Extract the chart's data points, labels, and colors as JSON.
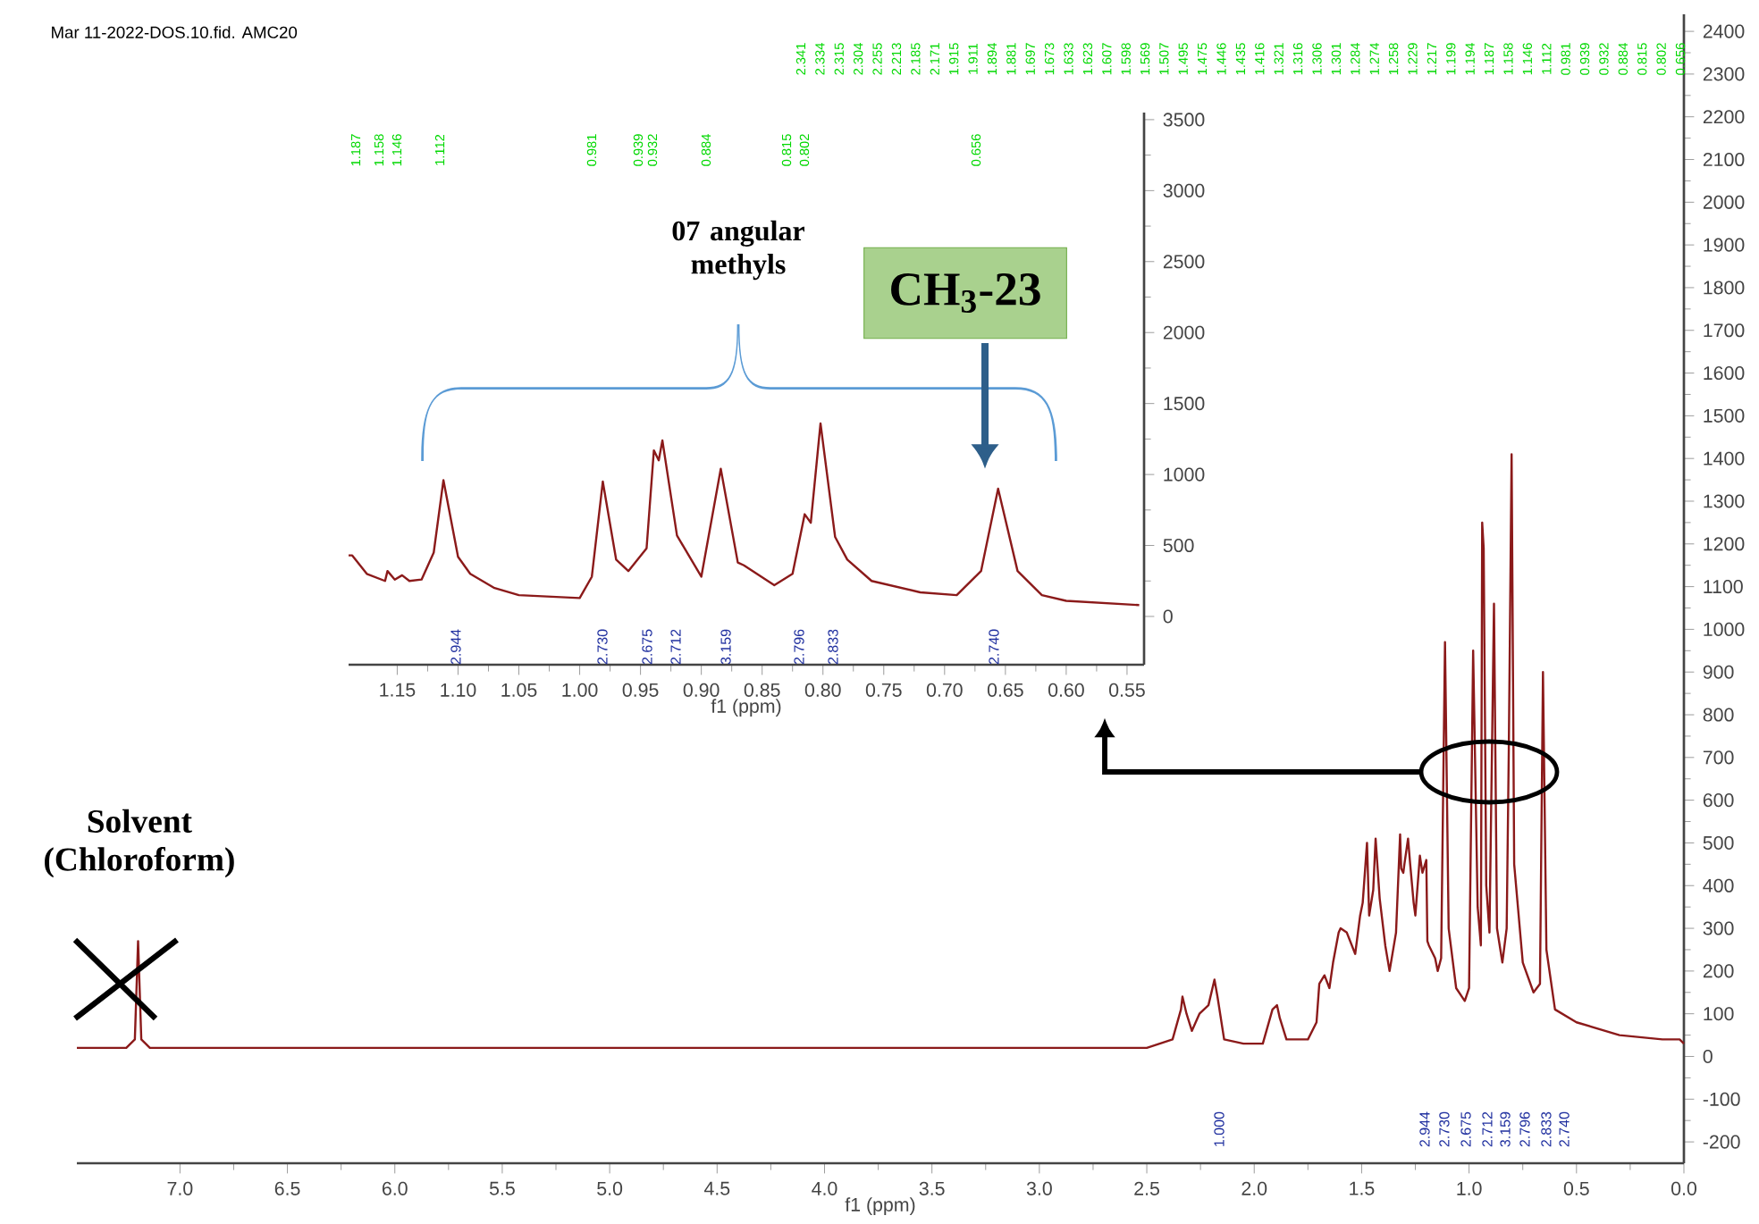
{
  "chart_data": [
    {
      "type": "line",
      "title": "Mar 11-2022-DOS.10.fid. AMC20",
      "xlabel": "f1 (ppm)",
      "x": [
        7.48,
        7.25,
        7.21,
        7.195,
        7.18,
        7.14,
        6.0,
        4.0,
        2.5,
        2.38,
        2.341,
        2.334,
        2.315,
        2.29,
        2.255,
        2.213,
        2.185,
        2.171,
        2.14,
        2.05,
        1.96,
        1.915,
        1.894,
        1.881,
        1.85,
        1.75,
        1.71,
        1.697,
        1.673,
        1.65,
        1.633,
        1.607,
        1.598,
        1.569,
        1.53,
        1.507,
        1.495,
        1.475,
        1.465,
        1.446,
        1.435,
        1.416,
        1.39,
        1.37,
        1.34,
        1.321,
        1.316,
        1.306,
        1.301,
        1.284,
        1.274,
        1.258,
        1.25,
        1.229,
        1.217,
        1.199,
        1.194,
        1.187,
        1.158,
        1.146,
        1.13,
        1.112,
        1.095,
        1.06,
        1.02,
        1.0,
        0.981,
        0.96,
        0.945,
        0.939,
        0.932,
        0.92,
        0.905,
        0.884,
        0.87,
        0.845,
        0.825,
        0.815,
        0.802,
        0.79,
        0.75,
        0.7,
        0.67,
        0.656,
        0.64,
        0.6,
        0.5,
        0.3,
        0.1,
        0.02,
        0.0
      ],
      "series": [
        {
          "color": "#8b1a1a",
          "values": [
            20,
            20,
            40,
            270,
            40,
            20,
            20,
            20,
            20,
            40,
            110,
            140,
            100,
            60,
            100,
            120,
            180,
            140,
            40,
            30,
            30,
            110,
            120,
            90,
            40,
            40,
            80,
            170,
            190,
            160,
            220,
            290,
            300,
            290,
            240,
            330,
            360,
            500,
            330,
            390,
            510,
            370,
            260,
            200,
            290,
            520,
            440,
            430,
            450,
            510,
            450,
            360,
            330,
            470,
            430,
            460,
            270,
            260,
            230,
            200,
            230,
            970,
            300,
            160,
            130,
            160,
            950,
            350,
            260,
            1250,
            1190,
            400,
            290,
            1060,
            300,
            220,
            300,
            720,
            1410,
            450,
            220,
            150,
            170,
            900,
            250,
            110,
            80,
            50,
            40,
            40,
            30
          ]
        }
      ],
      "xlim": [
        7.48,
        0
      ],
      "ylim": [
        -250,
        2440
      ],
      "xticks": [
        {
          "value": 7,
          "label": "7.0"
        },
        6.5,
        {
          "value": 6,
          "label": "6.0"
        },
        5.5,
        {
          "value": 5,
          "label": "5.0"
        },
        4.5,
        {
          "value": 4,
          "label": "4.0"
        },
        3.5,
        {
          "value": 3,
          "label": "3.0"
        },
        2.5,
        {
          "value": 2,
          "label": "2.0"
        },
        1.5,
        {
          "value": 1,
          "label": "1.0"
        },
        0.5,
        {
          "value": 0,
          "label": "0.0"
        }
      ],
      "yticks": [
        -200,
        -100,
        0,
        100,
        200,
        300,
        400,
        500,
        600,
        700,
        800,
        900,
        1000,
        1100,
        1200,
        1300,
        1400,
        1500,
        1600,
        1700,
        1800,
        1900,
        2000,
        2100,
        2200,
        2300,
        2400
      ],
      "annotations": [
        "2.341",
        "2.334",
        "2.315",
        "2.304",
        "2.255",
        "2.213",
        "2.185",
        "2.171",
        "1.915",
        "1.911",
        "1.894",
        "1.881",
        "1.697",
        "1.673",
        "1.633",
        "1.623",
        "1.607",
        "1.598",
        "1.569",
        "1.507",
        "1.495",
        "1.475",
        "1.446",
        "1.435",
        "1.416",
        "1.321",
        "1.316",
        "1.306",
        "1.301",
        "1.284",
        "1.274",
        "1.258",
        "1.229",
        "1.217",
        "1.199",
        "1.194",
        "1.187",
        "1.158",
        "1.146",
        "1.112",
        "0.981",
        "0.939",
        "0.932",
        "0.884",
        "0.815",
        "0.802",
        "0.656",
        "Solvent (Chloroform)",
        "1.000",
        "2.944",
        "2.730",
        "2.675",
        "2.712",
        "3.159",
        "2.796",
        "2.833",
        "2.740"
      ]
    },
    {
      "type": "line",
      "xlabel": "f1 (ppm)",
      "x": [
        1.19,
        1.187,
        1.175,
        1.16,
        1.158,
        1.152,
        1.146,
        1.14,
        1.13,
        1.12,
        1.112,
        1.1,
        1.09,
        1.07,
        1.05,
        1.0,
        0.99,
        0.981,
        0.97,
        0.96,
        0.945,
        0.939,
        0.935,
        0.932,
        0.92,
        0.9,
        0.884,
        0.87,
        0.865,
        0.84,
        0.825,
        0.815,
        0.81,
        0.802,
        0.79,
        0.78,
        0.76,
        0.72,
        0.69,
        0.67,
        0.656,
        0.64,
        0.62,
        0.6,
        0.54
      ],
      "series": [
        {
          "color": "#8b1a1a",
          "values": [
            430,
            430,
            300,
            250,
            320,
            260,
            290,
            250,
            260,
            450,
            960,
            420,
            300,
            200,
            150,
            130,
            280,
            950,
            400,
            320,
            480,
            1170,
            1100,
            1240,
            570,
            280,
            1040,
            380,
            360,
            220,
            300,
            720,
            660,
            1360,
            560,
            400,
            250,
            170,
            150,
            320,
            900,
            320,
            150,
            110,
            80
          ]
        }
      ],
      "xlim": [
        1.19,
        0.536
      ],
      "ylim": [
        -340,
        3550
      ],
      "xticks": [
        1.15,
        {
          "value": 1.1,
          "label": "1.10"
        },
        1.05,
        {
          "value": 1.0,
          "label": "1.00"
        },
        0.95,
        {
          "value": 0.9,
          "label": "0.90"
        },
        0.85,
        {
          "value": 0.8,
          "label": "0.80"
        },
        0.75,
        {
          "value": 0.7,
          "label": "0.70"
        },
        0.65,
        {
          "value": 0.6,
          "label": "0.60"
        },
        0.55
      ],
      "yticks": [
        0,
        500,
        1000,
        1500,
        2000,
        2500,
        3000,
        3500
      ],
      "annotations": [
        "1.187",
        "1.158",
        "1.146",
        "1.112",
        "0.981",
        "0.939",
        "0.932",
        "0.884",
        "0.815",
        "0.802",
        "0.656",
        "07 angular methyls",
        "CH$_{3}$-23",
        "2.944",
        "2.730",
        "2.675",
        "2.712",
        "3.159",
        "2.796",
        "2.833",
        "2.740"
      ]
    }
  ]
}
